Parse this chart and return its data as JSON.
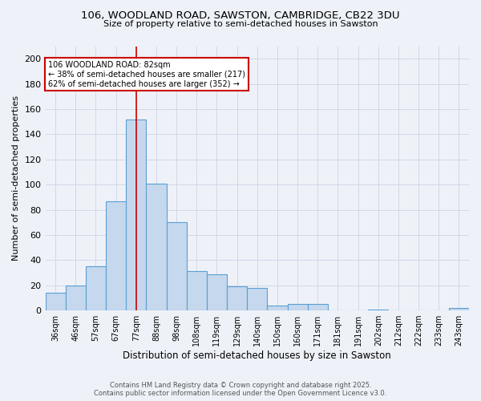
{
  "title1": "106, WOODLAND ROAD, SAWSTON, CAMBRIDGE, CB22 3DU",
  "title2": "Size of property relative to semi-detached houses in Sawston",
  "xlabel": "Distribution of semi-detached houses by size in Sawston",
  "ylabel": "Number of semi-detached properties",
  "categories": [
    "36sqm",
    "46sqm",
    "57sqm",
    "67sqm",
    "77sqm",
    "88sqm",
    "98sqm",
    "108sqm",
    "119sqm",
    "129sqm",
    "140sqm",
    "150sqm",
    "160sqm",
    "171sqm",
    "181sqm",
    "191sqm",
    "202sqm",
    "212sqm",
    "222sqm",
    "233sqm",
    "243sqm"
  ],
  "values": [
    14,
    20,
    35,
    87,
    152,
    101,
    70,
    31,
    29,
    19,
    18,
    4,
    5,
    5,
    0,
    0,
    1,
    0,
    0,
    0,
    2
  ],
  "bar_color": "#c5d8ed",
  "bar_edge_color": "#5a9fd4",
  "bar_linewidth": 0.8,
  "grid_color": "#d0d8e8",
  "background_color": "#eef2f8",
  "red_line_x": 4.5,
  "annotation_title": "106 WOODLAND ROAD: 82sqm",
  "annotation_line1": "← 38% of semi-detached houses are smaller (217)",
  "annotation_line2": "62% of semi-detached houses are larger (352) →",
  "annotation_box_color": "#ffffff",
  "annotation_box_edge": "#cc0000",
  "footer1": "Contains HM Land Registry data © Crown copyright and database right 2025.",
  "footer2": "Contains public sector information licensed under the Open Government Licence v3.0.",
  "ylim": [
    0,
    210
  ],
  "yticks": [
    0,
    20,
    40,
    60,
    80,
    100,
    120,
    140,
    160,
    180,
    200
  ]
}
